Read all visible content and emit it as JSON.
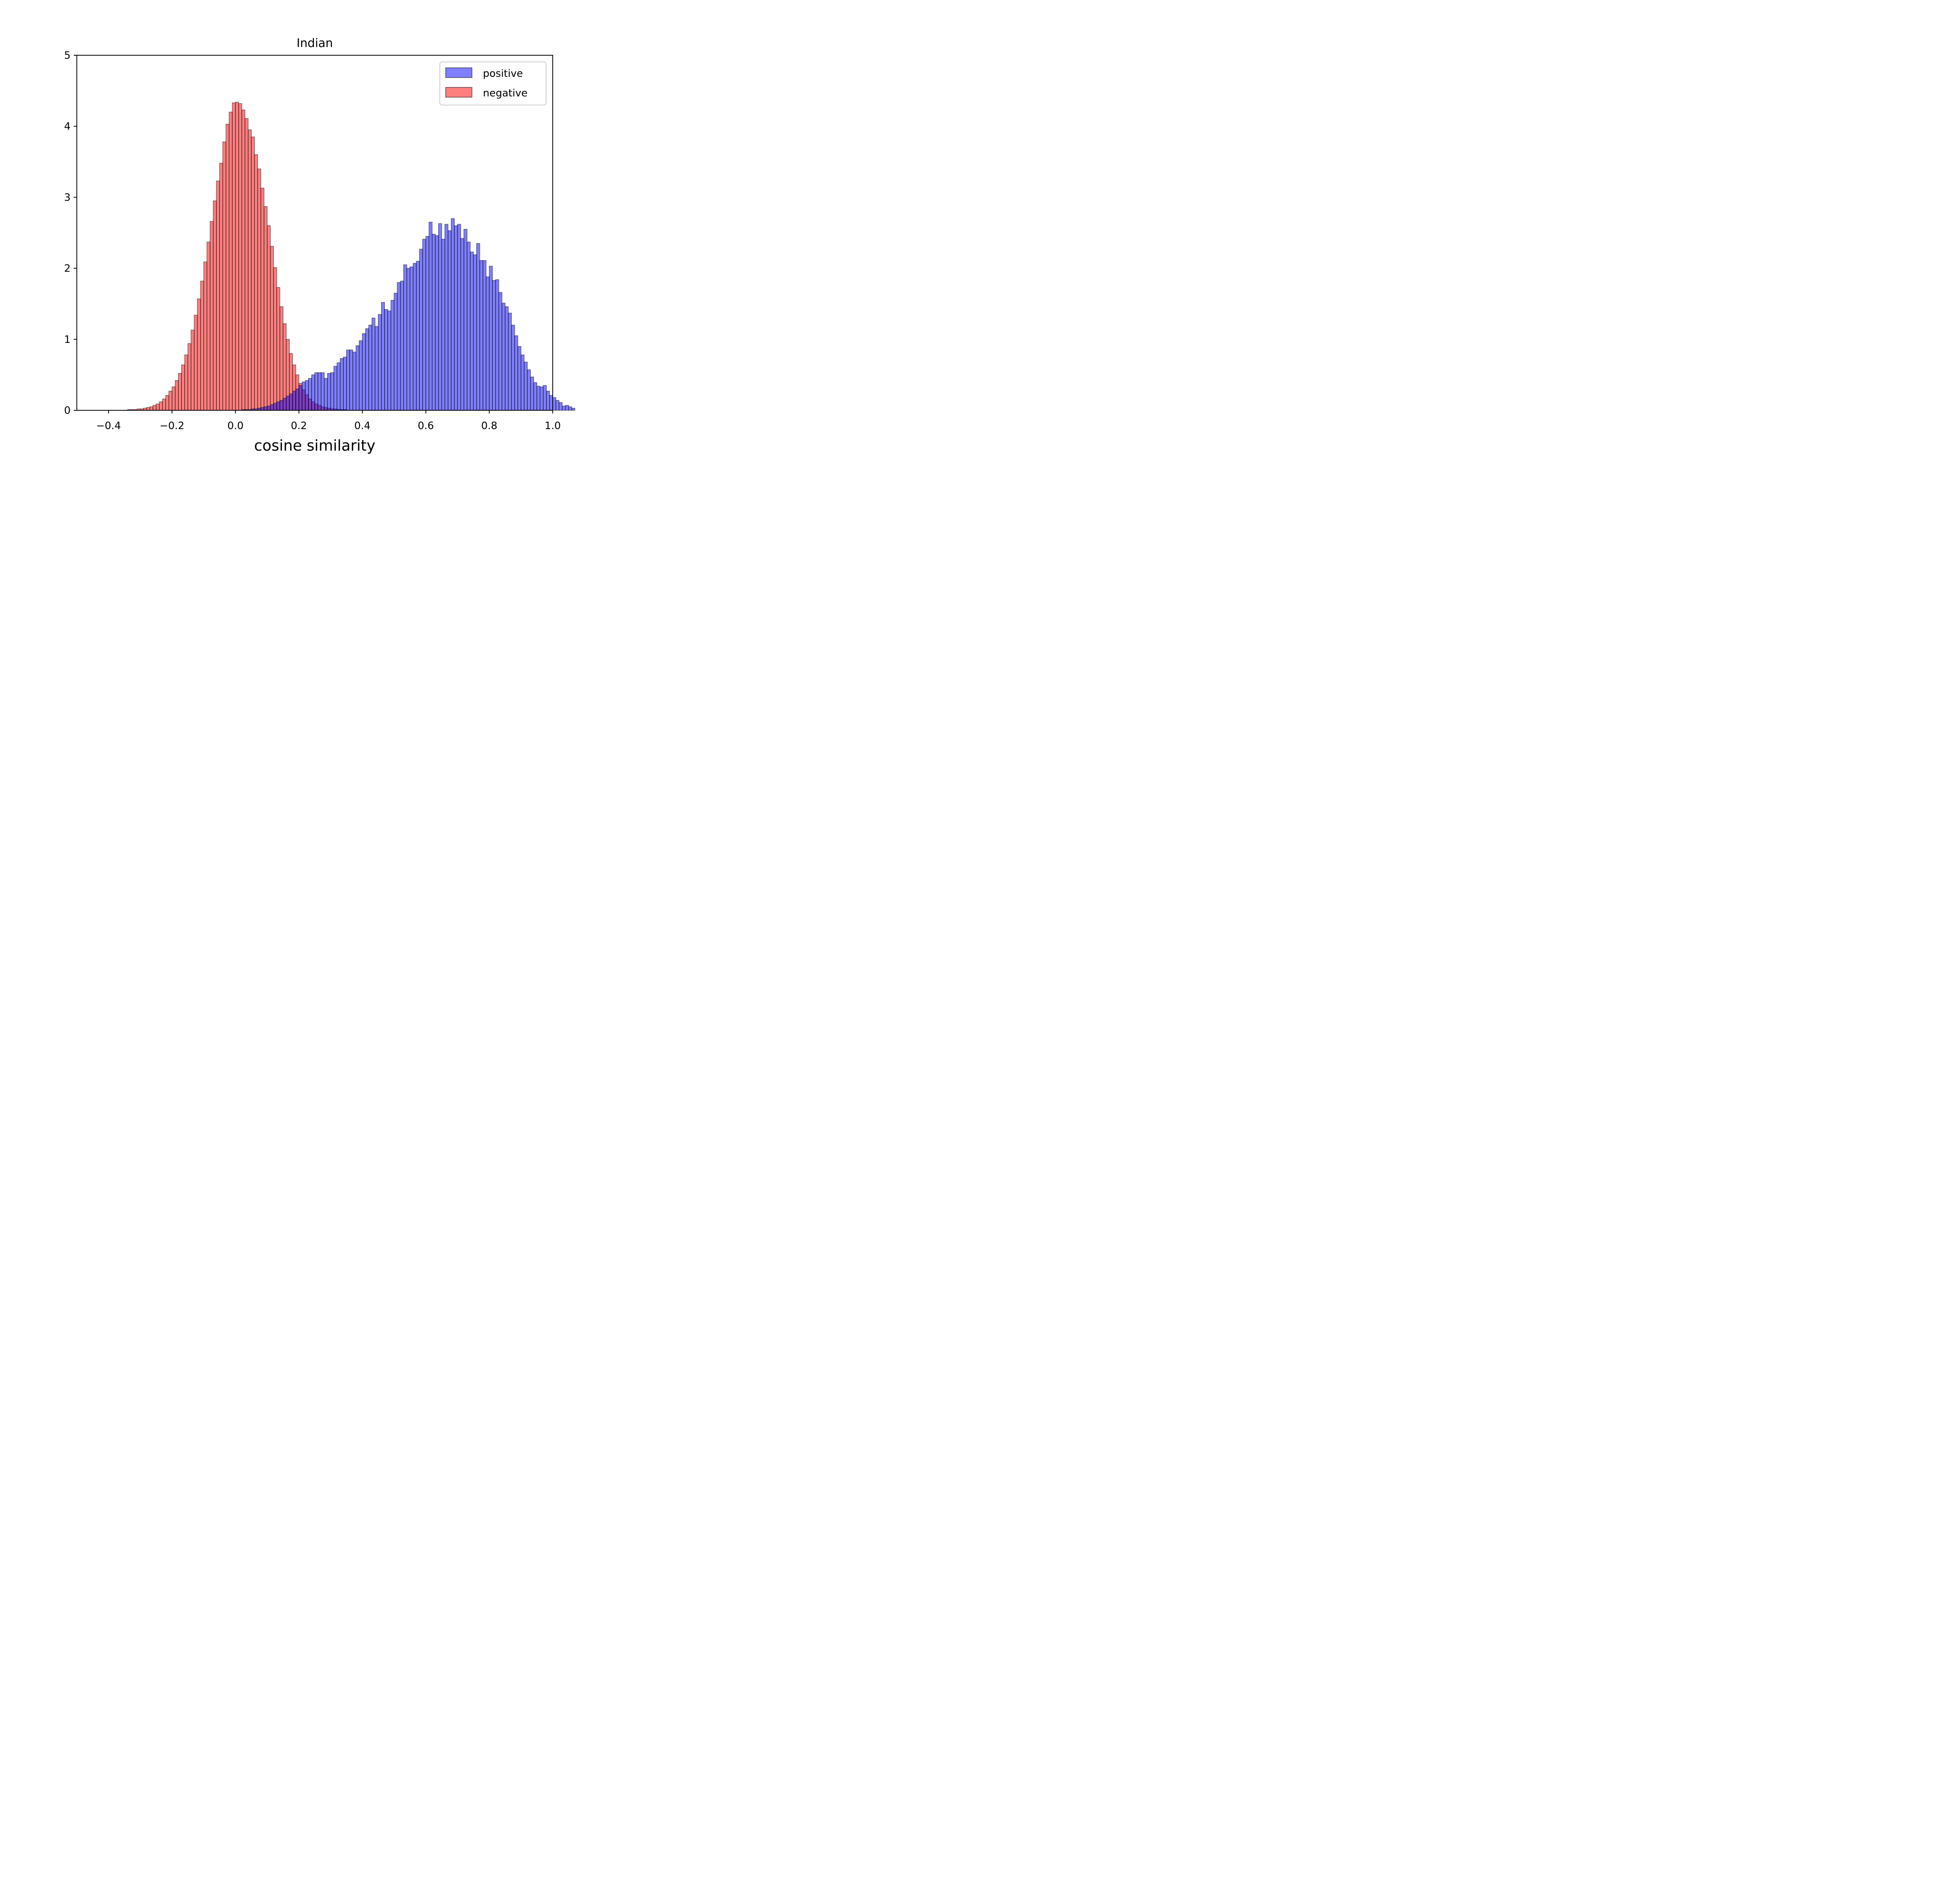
{
  "chart_data": {
    "type": "bar",
    "subtype": "histogram",
    "title": "Indian",
    "xlabel": "cosine similarity",
    "ylabel": "",
    "xlim": [
      -0.5,
      1.0
    ],
    "ylim": [
      0,
      5
    ],
    "xticks": [
      -0.4,
      -0.2,
      0.0,
      0.2,
      0.4,
      0.6,
      0.8,
      1.0
    ],
    "xtick_labels": [
      "−0.4",
      "−0.2",
      "0.0",
      "0.2",
      "0.4",
      "0.6",
      "0.8",
      "1.0"
    ],
    "yticks": [
      0,
      1,
      2,
      3,
      4,
      5
    ],
    "ytick_labels": [
      "0",
      "1",
      "2",
      "3",
      "4",
      "5"
    ],
    "grid": false,
    "legend_position": "top-right",
    "series": [
      {
        "name": "negative",
        "color": "#ff0000",
        "alpha": 0.5,
        "edgecolor": "#000000",
        "bin_start": -0.44,
        "bin_width": 0.01,
        "values": [
          0.0,
          0.0,
          0.0,
          0.0,
          0.0,
          0.0,
          0.0,
          0.0,
          0.0,
          0.0,
          0.01,
          0.01,
          0.01,
          0.02,
          0.02,
          0.03,
          0.04,
          0.05,
          0.07,
          0.09,
          0.12,
          0.16,
          0.21,
          0.27,
          0.33,
          0.42,
          0.52,
          0.64,
          0.78,
          0.94,
          1.13,
          1.34,
          1.57,
          1.82,
          2.09,
          2.37,
          2.66,
          2.95,
          3.23,
          3.48,
          3.78,
          4.03,
          4.2,
          4.33,
          4.34,
          4.32,
          4.23,
          4.11,
          3.95,
          3.85,
          3.6,
          3.4,
          3.13,
          2.87,
          2.6,
          2.31,
          2.01,
          1.73,
          1.46,
          1.22,
          1.0,
          0.8,
          0.64,
          0.5,
          0.38,
          0.29,
          0.22,
          0.16,
          0.12,
          0.09,
          0.07,
          0.05,
          0.04,
          0.03,
          0.02,
          0.02,
          0.01,
          0.01,
          0.01,
          0.0,
          0.0,
          0.0,
          0.0,
          0.0,
          0.0,
          0.0,
          0.0,
          0.0,
          0.0,
          0.0
        ]
      },
      {
        "name": "positive",
        "color": "#0000ff",
        "alpha": 0.5,
        "edgecolor": "#000000",
        "bin_start": -0.2,
        "bin_width": 0.01,
        "values": [
          0.0,
          0.0,
          0.0,
          0.0,
          0.0,
          0.0,
          0.0,
          0.0,
          0.0,
          0.0,
          0.0,
          0.0,
          0.0,
          0.0,
          0.0,
          0.0,
          0.0,
          0.0,
          0.0,
          0.0,
          0.0,
          0.0,
          0.01,
          0.01,
          0.01,
          0.02,
          0.02,
          0.03,
          0.04,
          0.05,
          0.06,
          0.08,
          0.1,
          0.12,
          0.14,
          0.17,
          0.2,
          0.23,
          0.27,
          0.3,
          0.35,
          0.4,
          0.42,
          0.45,
          0.5,
          0.53,
          0.53,
          0.53,
          0.45,
          0.52,
          0.53,
          0.62,
          0.67,
          0.73,
          0.75,
          0.85,
          0.85,
          0.82,
          0.91,
          0.98,
          1.08,
          1.15,
          1.2,
          1.3,
          1.18,
          1.35,
          1.52,
          1.42,
          1.4,
          1.55,
          1.65,
          1.8,
          1.82,
          2.05,
          2.0,
          2.02,
          2.07,
          2.1,
          2.27,
          2.41,
          2.45,
          2.65,
          2.48,
          2.46,
          2.63,
          2.41,
          2.62,
          2.53,
          2.7,
          2.6,
          2.62,
          2.42,
          2.55,
          2.37,
          2.23,
          2.19,
          2.35,
          2.11,
          2.11,
          1.88,
          2.03,
          1.83,
          1.84,
          1.66,
          1.51,
          1.46,
          1.37,
          1.2,
          1.05,
          0.9,
          0.78,
          0.68,
          0.57,
          0.47,
          0.39,
          0.34,
          0.33,
          0.35,
          0.27,
          0.21,
          0.18,
          0.14,
          0.11,
          0.06,
          0.07,
          0.05,
          0.03
        ]
      }
    ]
  },
  "legend": {
    "items": [
      {
        "label": "positive",
        "color": "#0000ff"
      },
      {
        "label": "negative",
        "color": "#ff0000"
      }
    ]
  }
}
